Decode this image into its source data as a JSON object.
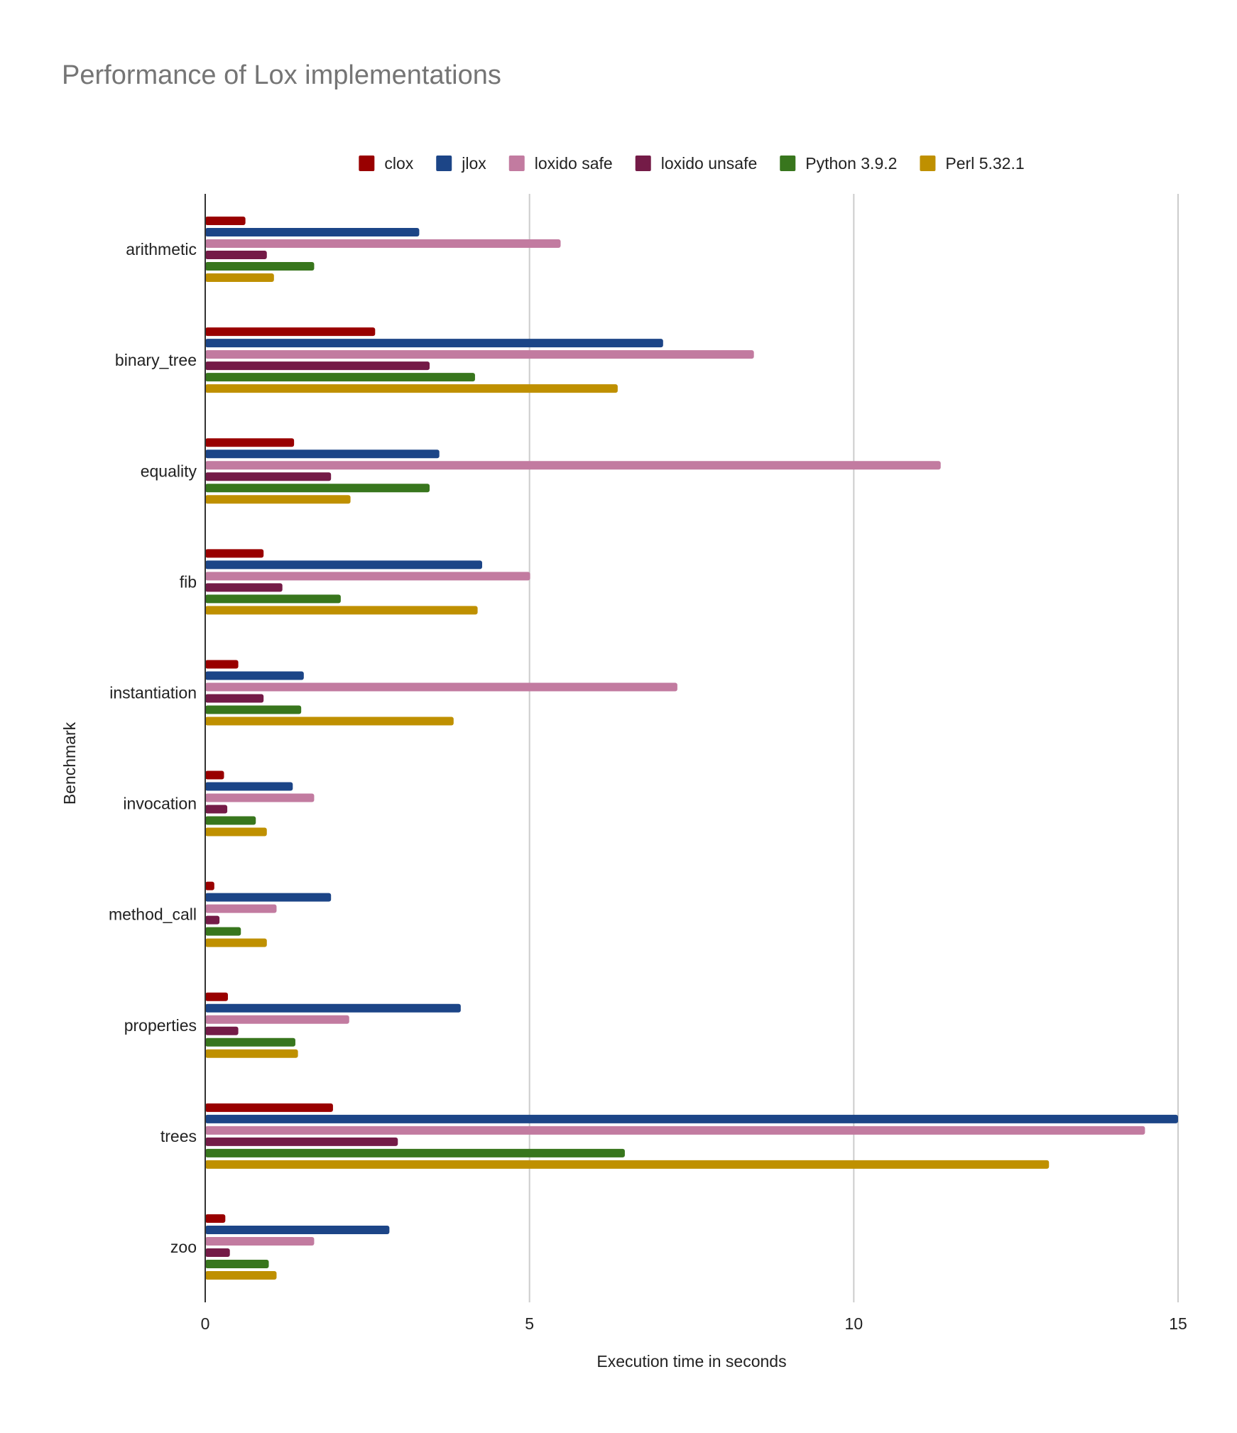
{
  "chart_data": {
    "type": "bar",
    "orientation": "horizontal",
    "title": "Performance of Lox implementations",
    "xlabel": "Execution time in seconds",
    "ylabel": "Benchmark",
    "xlim": [
      0,
      15
    ],
    "xticks": [
      0,
      5,
      10,
      15
    ],
    "grid": true,
    "legend_position": "top",
    "categories": [
      "arithmetic",
      "binary_tree",
      "equality",
      "fib",
      "instantiation",
      "invocation",
      "method_call",
      "properties",
      "trees",
      "zoo"
    ],
    "series": [
      {
        "name": "clox",
        "color": "#990000",
        "values": [
          0.62,
          2.62,
          1.37,
          0.9,
          0.51,
          0.29,
          0.14,
          0.35,
          1.97,
          0.31
        ]
      },
      {
        "name": "jlox",
        "color": "#1c4587",
        "values": [
          3.3,
          7.06,
          3.61,
          4.27,
          1.52,
          1.35,
          1.94,
          3.94,
          15.0,
          2.84
        ]
      },
      {
        "name": "loxido safe",
        "color": "#c27ba0",
        "values": [
          5.48,
          8.46,
          11.34,
          5.01,
          7.28,
          1.68,
          1.1,
          2.22,
          14.49,
          1.68
        ]
      },
      {
        "name": "loxido unsafe",
        "color": "#741b47",
        "values": [
          0.95,
          3.46,
          1.94,
          1.19,
          0.9,
          0.34,
          0.22,
          0.51,
          2.97,
          0.38
        ]
      },
      {
        "name": "Python 3.9.2",
        "color": "#38761d",
        "values": [
          1.68,
          4.16,
          3.46,
          2.09,
          1.48,
          0.78,
          0.55,
          1.39,
          6.47,
          0.98
        ]
      },
      {
        "name": "Perl 5.32.1",
        "color": "#bf9000",
        "values": [
          1.06,
          6.36,
          2.24,
          4.2,
          3.83,
          0.95,
          0.95,
          1.43,
          13.01,
          1.1
        ]
      }
    ]
  }
}
